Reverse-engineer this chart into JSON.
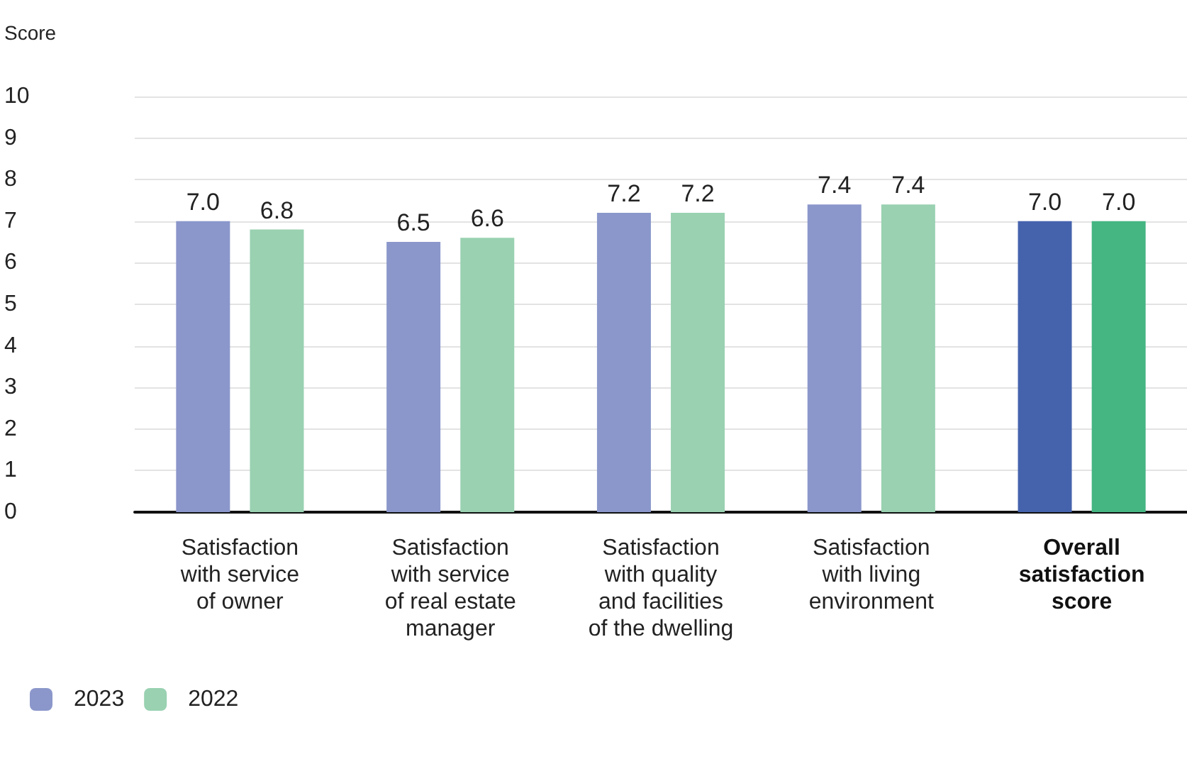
{
  "chart_data": {
    "type": "bar",
    "ylabel": "Score",
    "categories": [
      "Satisfaction\nwith service\nof owner",
      "Satisfaction\nwith service\nof real estate\nmanager",
      "Satisfaction\nwith quality\nand facilities\nof the dwelling",
      "Satisfaction\nwith living\nenvironment",
      "Overall\nsatisfaction\nscore"
    ],
    "series": [
      {
        "name": "2023",
        "color": "#8b97cb",
        "colors": [
          "#8b97cb",
          "#8b97cb",
          "#8b97cb",
          "#8b97cb",
          "#4563ad"
        ],
        "values": [
          7.0,
          6.5,
          7.2,
          7.4,
          7.0
        ],
        "value_labels": [
          "7.0",
          "6.5",
          "7.2",
          "7.4",
          "7.0"
        ]
      },
      {
        "name": "2022",
        "color": "#99d1b1",
        "colors": [
          "#99d1b1",
          "#99d1b1",
          "#99d1b1",
          "#99d1b1",
          "#45b582"
        ],
        "values": [
          6.8,
          6.6,
          7.2,
          7.4,
          7.0
        ],
        "value_labels": [
          "6.8",
          "6.6",
          "7.2",
          "7.4",
          "7.0"
        ]
      }
    ],
    "ylim": [
      0,
      10
    ],
    "yticks": [
      0,
      1,
      2,
      3,
      4,
      5,
      6,
      7,
      8,
      9,
      10
    ],
    "grid": "y",
    "legend": "bottom left"
  }
}
